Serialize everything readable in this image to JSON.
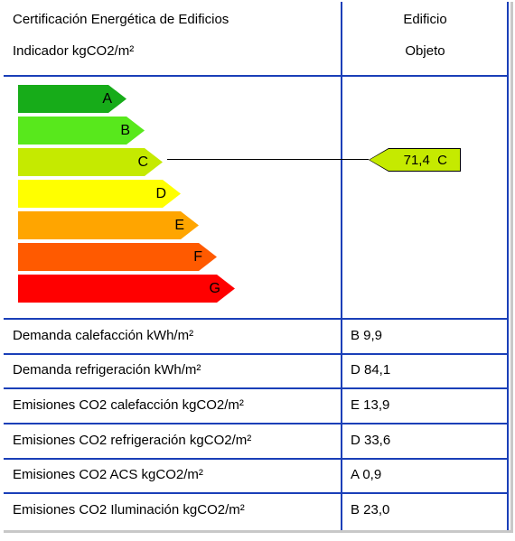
{
  "header": {
    "title": "Certificación Energética de Edificios",
    "subtitle": "Indicador kgCO2/m²",
    "col_title": "Edificio",
    "col_subtitle": "Objeto"
  },
  "scale": {
    "classes": [
      {
        "label": "A",
        "color": "#17ac19"
      },
      {
        "label": "B",
        "color": "#58e81c"
      },
      {
        "label": "C",
        "color": "#c5ea00"
      },
      {
        "label": "D",
        "color": "#ffff00"
      },
      {
        "label": "E",
        "color": "#ffa500"
      },
      {
        "label": "F",
        "color": "#ff5a00"
      },
      {
        "label": "G",
        "color": "#ff0000"
      }
    ],
    "indicator": {
      "value": "71,4",
      "class": "C",
      "text": "71,4  C",
      "color": "#c5ea00"
    }
  },
  "rows": [
    {
      "label": "Demanda calefacción kWh/m²",
      "value": "B 9,9"
    },
    {
      "label": "Demanda refrigeración kWh/m²",
      "value": "D 84,1"
    },
    {
      "label": "Emisiones CO2 calefacción kgCO2/m²",
      "value": "E 13,9"
    },
    {
      "label": "Emisiones CO2 refrigeración kgCO2/m²",
      "value": "D 33,6"
    },
    {
      "label": "Emisiones CO2 ACS kgCO2/m²",
      "value": "A 0,9"
    },
    {
      "label": "Emisiones CO2 Iluminación kgCO2/m²",
      "value": "B 23,0"
    }
  ],
  "colors": {
    "grid": "#1a3fb8",
    "frame_shadow": "#c8c8c8"
  }
}
